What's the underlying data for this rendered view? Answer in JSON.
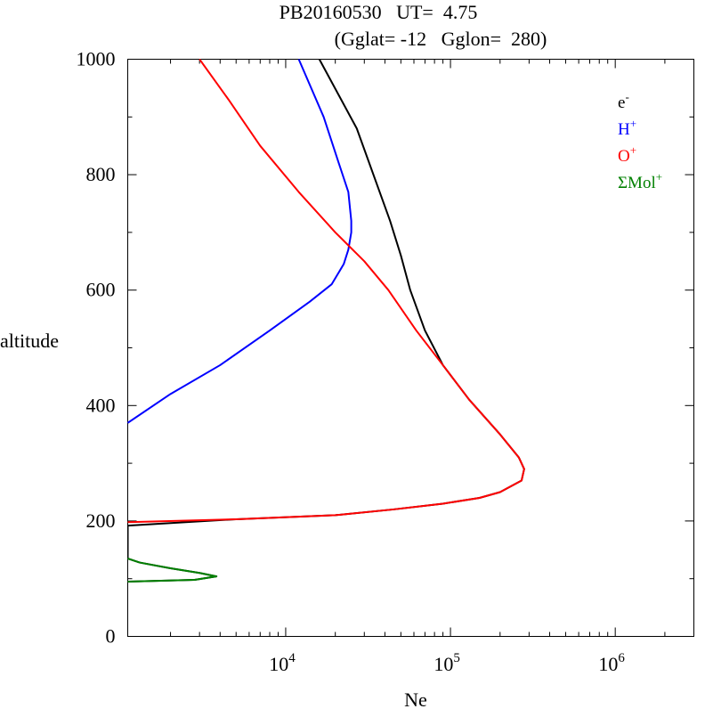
{
  "chart_data": {
    "type": "line",
    "title_line1": "PB20160530   UT=  4.75",
    "title_line2": "(Gglat= -12   Gglon=  280)",
    "xlabel": "Ne",
    "ylabel": "altitude",
    "x_scale": "log",
    "xlim": [
      1100,
      3000000
    ],
    "ylim": [
      0,
      1000
    ],
    "x_major_ticks": [
      {
        "value": 10000,
        "base": "10",
        "exp": "4"
      },
      {
        "value": 100000,
        "base": "10",
        "exp": "5"
      },
      {
        "value": 1000000,
        "base": "10",
        "exp": "6"
      }
    ],
    "y_ticks": [
      {
        "value": 0,
        "label": "0"
      },
      {
        "value": 200,
        "label": "200"
      },
      {
        "value": 400,
        "label": "400"
      },
      {
        "value": 600,
        "label": "600"
      },
      {
        "value": 800,
        "label": "800"
      },
      {
        "value": 1000,
        "label": "1000"
      }
    ],
    "legend_position": "top-right",
    "series": [
      {
        "name": "e-",
        "base": "e",
        "sup": "-",
        "color": "#000000",
        "points": [
          [
            16000,
            1000
          ],
          [
            27000,
            880
          ],
          [
            43000,
            720
          ],
          [
            50000,
            660
          ],
          [
            57000,
            600
          ],
          [
            70000,
            530
          ],
          [
            90000,
            470
          ],
          [
            130000,
            410
          ],
          [
            200000,
            350
          ],
          [
            260000,
            310
          ],
          [
            280000,
            290
          ],
          [
            270000,
            270
          ],
          [
            200000,
            250
          ],
          [
            150000,
            240
          ],
          [
            90000,
            230
          ],
          [
            45000,
            220
          ],
          [
            20000,
            210
          ],
          [
            5000,
            203
          ],
          [
            1100,
            192
          ],
          [
            1100,
            135
          ],
          [
            1300,
            128
          ],
          [
            2000,
            118
          ],
          [
            3000,
            110
          ],
          [
            3800,
            104
          ],
          [
            2800,
            98
          ],
          [
            1100,
            95
          ]
        ]
      },
      {
        "name": "H+",
        "base": "H",
        "sup": "+",
        "color": "#0000ff",
        "points": [
          [
            12000,
            1000
          ],
          [
            17000,
            900
          ],
          [
            21000,
            820
          ],
          [
            24000,
            770
          ],
          [
            25000,
            720
          ],
          [
            25000,
            700
          ],
          [
            24000,
            670
          ],
          [
            22500,
            645
          ],
          [
            19000,
            610
          ],
          [
            14000,
            580
          ],
          [
            8000,
            530
          ],
          [
            4000,
            470
          ],
          [
            2000,
            420
          ],
          [
            1100,
            370
          ]
        ]
      },
      {
        "name": "O+",
        "base": "O",
        "sup": "+",
        "color": "#ff0000",
        "points": [
          [
            3000,
            1000
          ],
          [
            4500,
            930
          ],
          [
            7000,
            850
          ],
          [
            12000,
            770
          ],
          [
            20000,
            700
          ],
          [
            30000,
            650
          ],
          [
            42000,
            600
          ],
          [
            62000,
            530
          ],
          [
            90000,
            470
          ],
          [
            130000,
            410
          ],
          [
            200000,
            350
          ],
          [
            260000,
            310
          ],
          [
            280000,
            290
          ],
          [
            270000,
            270
          ],
          [
            200000,
            250
          ],
          [
            150000,
            240
          ],
          [
            90000,
            230
          ],
          [
            45000,
            220
          ],
          [
            20000,
            210
          ],
          [
            5000,
            203
          ],
          [
            1100,
            198
          ]
        ]
      },
      {
        "name": "ΣMol+",
        "base": "ΣMol",
        "sup": "+",
        "color": "#008000",
        "points": [
          [
            1100,
            135
          ],
          [
            1300,
            128
          ],
          [
            2000,
            118
          ],
          [
            3000,
            110
          ],
          [
            3800,
            104
          ],
          [
            2800,
            98
          ],
          [
            1100,
            95
          ]
        ]
      }
    ]
  }
}
